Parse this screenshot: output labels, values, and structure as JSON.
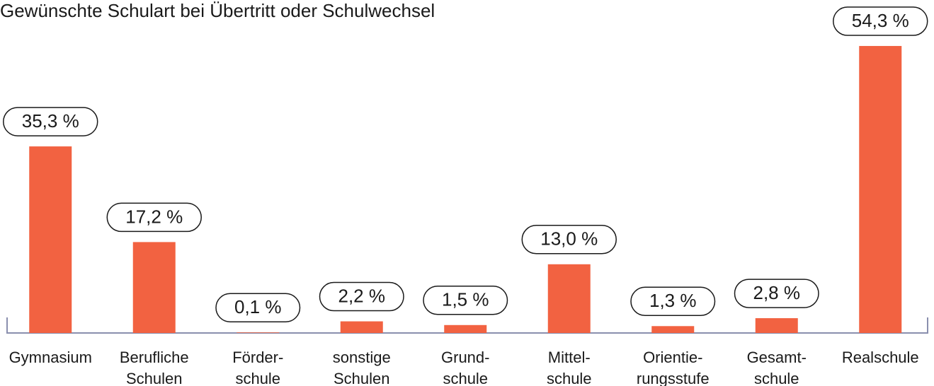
{
  "chart_data": {
    "type": "bar",
    "title": "Gewünschte Schulart bei Übertritt oder Schulwechsel",
    "categories": [
      [
        "Gymnasium"
      ],
      [
        "Berufliche",
        "Schulen"
      ],
      [
        "Förder-",
        "schule"
      ],
      [
        "sonstige",
        "Schulen"
      ],
      [
        "Grund-",
        "schule"
      ],
      [
        "Mittel-",
        "schule"
      ],
      [
        "Orientie-",
        "rungsstufe"
      ],
      [
        "Gesamt-",
        "schule"
      ],
      [
        "Realschule"
      ]
    ],
    "values": [
      35.3,
      17.2,
      0.1,
      2.2,
      1.5,
      13.0,
      1.3,
      2.8,
      54.3
    ],
    "value_labels": [
      "35,3 %",
      "17,2 %",
      "0,1 %",
      "2,2 %",
      "1,5 %",
      "13,0 %",
      "1,3 %",
      "2,8 %",
      "54,3 %"
    ],
    "color": "#f26241",
    "ylim": [
      0,
      63
    ]
  }
}
